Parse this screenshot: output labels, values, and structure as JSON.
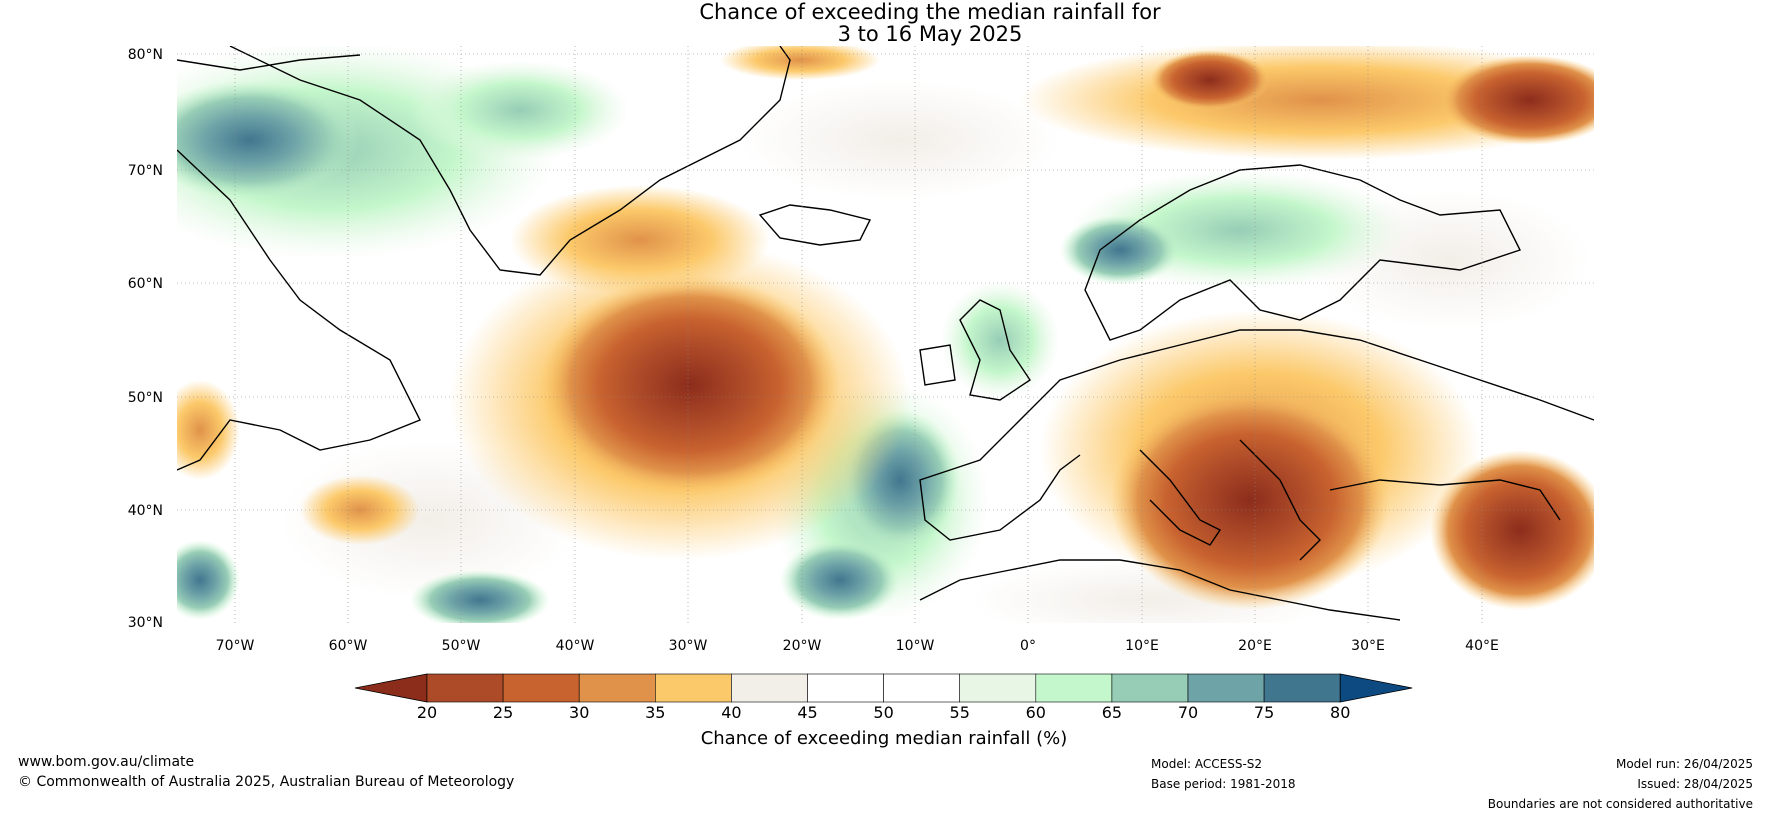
{
  "title": {
    "line1": "Chance of exceeding the median rainfall for",
    "line2": "3 to 16 May 2025"
  },
  "map": {
    "lat_labels": [
      "80°N",
      "70°N",
      "60°N",
      "50°N",
      "40°N",
      "30°N"
    ],
    "lon_labels": [
      "70°W",
      "60°W",
      "50°W",
      "40°W",
      "30°W",
      "20°W",
      "10°W",
      "0°",
      "10°E",
      "20°E",
      "30°E",
      "40°E"
    ],
    "lat_range": [
      30,
      80
    ],
    "lon_range": [
      -75,
      50
    ],
    "grid": true
  },
  "colorbar": {
    "label": "Chance of exceeding median rainfall (%)",
    "ticks": [
      "20",
      "25",
      "30",
      "35",
      "40",
      "45",
      "50",
      "55",
      "60",
      "65",
      "70",
      "75",
      "80"
    ],
    "colors": [
      "#8c2d1c",
      "#ad4a28",
      "#c8622f",
      "#e0924a",
      "#fcc96a",
      "#f2eee8",
      "#ffffff",
      "#ffffff",
      "#e7f6e5",
      "#c5f7cc",
      "#97cdb6",
      "#6ea3a8",
      "#41768f",
      "#0d4a82"
    ]
  },
  "footer": {
    "url": "www.bom.gov.au/climate",
    "copyright": "© Commonwealth of Australia 2025, Australian Bureau of Meteorology",
    "model": "Model: ACCESS-S2",
    "base_period": "Base period: 1981-2018",
    "model_run": "Model run: 26/04/2025",
    "issued": "Issued: 28/04/2025",
    "disclaimer": "Boundaries are not considered authoritative"
  }
}
